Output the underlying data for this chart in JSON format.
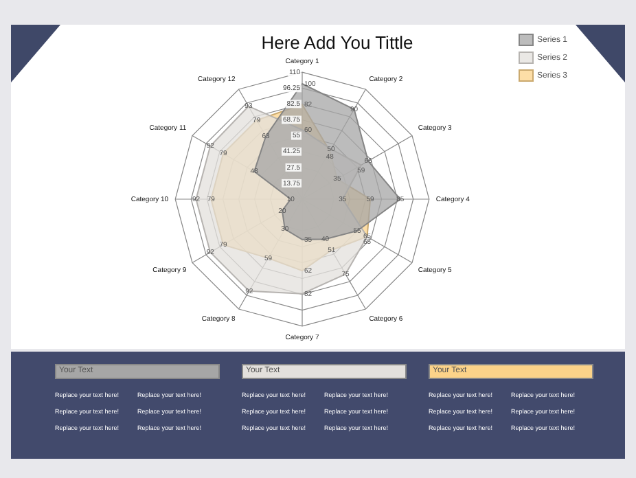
{
  "chart_data": {
    "type": "radar",
    "title": "Here Add You Tittle",
    "categories": [
      "Category 1",
      "Category 2",
      "Category 3",
      "Category 4",
      "Category 5",
      "Category 6",
      "Category 7",
      "Category 8",
      "Category 9",
      "Category 10",
      "Category 11",
      "Category 12"
    ],
    "series": [
      {
        "name": "Series 1",
        "color": "#a6a6a6",
        "values": [
          100,
          90,
          66,
          85,
          55,
          40,
          35,
          30,
          20,
          10,
          48,
          63
        ]
      },
      {
        "name": "Series 2",
        "color": "#e3e0dc",
        "values": [
          60,
          50,
          59,
          35,
          65,
          75,
          82,
          92,
          92,
          92,
          92,
          93
        ]
      },
      {
        "name": "Series 3",
        "color": "#fcd389",
        "values": [
          82,
          48,
          35,
          59,
          65,
          51,
          62,
          59,
          79,
          79,
          79,
          79
        ]
      }
    ],
    "ylim": [
      0,
      110
    ],
    "yticks": [
      13.75,
      27.5,
      41.25,
      55,
      68.75,
      82.5,
      96.25,
      110
    ],
    "grid": true,
    "legend": "top right",
    "data_labels": true,
    "annotations": [
      "Your Text",
      "Replace your text here!",
      "Replace your text here!",
      "Replace your text here!",
      "Replace your text here!",
      "Replace your text here!",
      "Replace your text here!",
      "Your Text",
      "Replace your text here!",
      "Replace your text here!",
      "Replace your text here!",
      "Replace your text here!",
      "Replace your text here!",
      "Replace your text here!",
      "Your Text",
      "Replace your text here!",
      "Replace your text here!",
      "Replace your text here!",
      "Replace your text here!",
      "Replace your text here!",
      "Replace your text here!"
    ]
  }
}
